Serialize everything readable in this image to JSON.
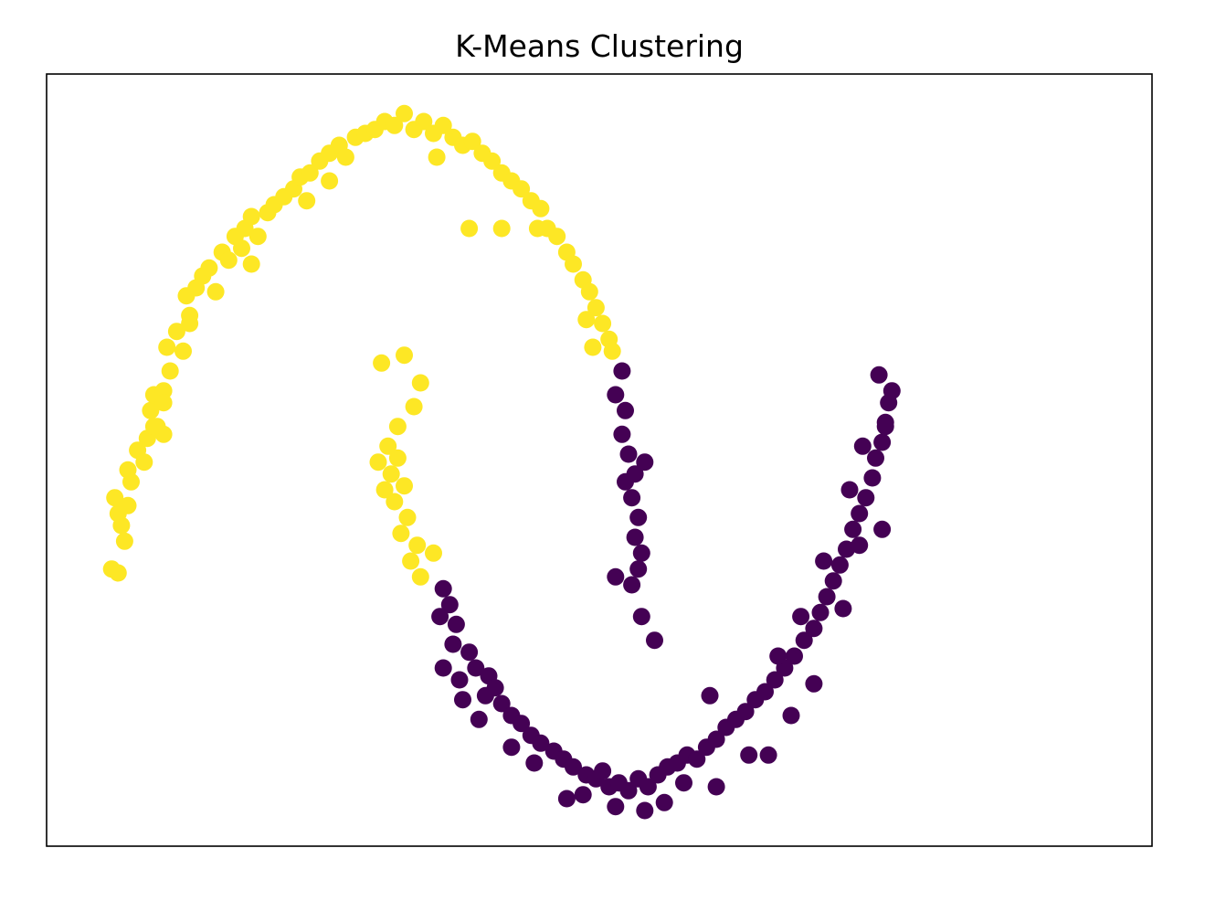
{
  "chart_data": {
    "type": "scatter",
    "title": "K-Means Clustering",
    "xlabel": "",
    "ylabel": "",
    "xlim": [
      -1.2,
      2.2
    ],
    "ylim": [
      -0.7,
      1.25
    ],
    "grid": false,
    "ticks_visible": false,
    "legend": "none",
    "series": [
      {
        "color": "#fde725",
        "points": [
          [
            -1.0,
            0.0
          ],
          [
            -0.98,
            -0.01
          ],
          [
            -0.96,
            0.07
          ],
          [
            -0.97,
            0.11
          ],
          [
            -0.98,
            0.14
          ],
          [
            -0.99,
            0.18
          ],
          [
            -0.95,
            0.16
          ],
          [
            -0.94,
            0.22
          ],
          [
            -0.92,
            0.3
          ],
          [
            -0.9,
            0.27
          ],
          [
            -0.89,
            0.33
          ],
          [
            -0.86,
            0.36
          ],
          [
            -0.84,
            0.34
          ],
          [
            -0.88,
            0.4
          ],
          [
            -0.87,
            0.44
          ],
          [
            -0.84,
            0.45
          ],
          [
            -0.82,
            0.5
          ],
          [
            -0.83,
            0.56
          ],
          [
            -0.8,
            0.6
          ],
          [
            -0.78,
            0.55
          ],
          [
            -0.76,
            0.64
          ],
          [
            -0.77,
            0.69
          ],
          [
            -0.74,
            0.71
          ],
          [
            -0.72,
            0.74
          ],
          [
            -0.7,
            0.76
          ],
          [
            -0.68,
            0.7
          ],
          [
            -0.66,
            0.8
          ],
          [
            -0.64,
            0.78
          ],
          [
            -0.62,
            0.84
          ],
          [
            -0.59,
            0.86
          ],
          [
            -0.57,
            0.89
          ],
          [
            -0.55,
            0.84
          ],
          [
            -0.52,
            0.9
          ],
          [
            -0.5,
            0.92
          ],
          [
            -0.47,
            0.94
          ],
          [
            -0.44,
            0.96
          ],
          [
            -0.42,
            0.99
          ],
          [
            -0.39,
            1.0
          ],
          [
            -0.36,
            1.03
          ],
          [
            -0.33,
            1.05
          ],
          [
            -0.3,
            1.07
          ],
          [
            -0.28,
            1.04
          ],
          [
            -0.25,
            1.09
          ],
          [
            -0.22,
            1.1
          ],
          [
            -0.19,
            1.11
          ],
          [
            -0.16,
            1.13
          ],
          [
            -0.13,
            1.12
          ],
          [
            -0.1,
            1.15
          ],
          [
            -0.07,
            1.11
          ],
          [
            -0.04,
            1.13
          ],
          [
            -0.01,
            1.1
          ],
          [
            0.02,
            1.12
          ],
          [
            0.05,
            1.09
          ],
          [
            0.08,
            1.07
          ],
          [
            0.11,
            1.08
          ],
          [
            0.14,
            1.05
          ],
          [
            0.17,
            1.03
          ],
          [
            0.2,
            1.0
          ],
          [
            0.23,
            0.98
          ],
          [
            0.26,
            0.96
          ],
          [
            0.29,
            0.93
          ],
          [
            0.32,
            0.91
          ],
          [
            0.34,
            0.86
          ],
          [
            0.37,
            0.84
          ],
          [
            0.4,
            0.8
          ],
          [
            0.42,
            0.77
          ],
          [
            0.45,
            0.73
          ],
          [
            0.47,
            0.7
          ],
          [
            0.49,
            0.66
          ],
          [
            0.51,
            0.62
          ],
          [
            0.53,
            0.58
          ],
          [
            0.54,
            0.55
          ],
          [
            0.1,
            0.86
          ],
          [
            0.2,
            0.86
          ],
          [
            -0.57,
            0.77
          ],
          [
            -0.84,
            0.42
          ],
          [
            -0.87,
            0.36
          ],
          [
            -0.95,
            0.25
          ],
          [
            -0.76,
            0.62
          ],
          [
            -0.6,
            0.81
          ],
          [
            -0.4,
            0.93
          ],
          [
            -0.33,
            0.98
          ],
          [
            0.0,
            1.04
          ],
          [
            0.31,
            0.86
          ],
          [
            0.46,
            0.63
          ],
          [
            0.48,
            0.56
          ],
          [
            -0.17,
            0.52
          ],
          [
            -0.1,
            0.54
          ],
          [
            -0.05,
            0.47
          ],
          [
            -0.07,
            0.41
          ],
          [
            -0.12,
            0.36
          ],
          [
            -0.15,
            0.31
          ],
          [
            -0.18,
            0.27
          ],
          [
            -0.14,
            0.24
          ],
          [
            -0.1,
            0.21
          ],
          [
            -0.13,
            0.17
          ],
          [
            -0.09,
            0.13
          ],
          [
            -0.11,
            0.09
          ],
          [
            -0.06,
            0.06
          ],
          [
            -0.08,
            0.02
          ],
          [
            -0.05,
            -0.02
          ],
          [
            -0.01,
            0.04
          ],
          [
            -0.16,
            0.2
          ],
          [
            -0.12,
            0.28
          ]
        ]
      },
      {
        "color": "#440154",
        "points": [
          [
            0.57,
            0.5
          ],
          [
            0.55,
            0.44
          ],
          [
            0.58,
            0.4
          ],
          [
            0.57,
            0.34
          ],
          [
            0.59,
            0.29
          ],
          [
            0.61,
            0.24
          ],
          [
            0.6,
            0.18
          ],
          [
            0.62,
            0.13
          ],
          [
            0.61,
            0.08
          ],
          [
            0.63,
            0.04
          ],
          [
            0.62,
            0.0
          ],
          [
            0.6,
            -0.04
          ],
          [
            0.64,
            0.27
          ],
          [
            0.58,
            0.22
          ],
          [
            0.55,
            -0.02
          ],
          [
            0.63,
            -0.12
          ],
          [
            0.02,
            -0.05
          ],
          [
            0.04,
            -0.09
          ],
          [
            0.01,
            -0.12
          ],
          [
            0.06,
            -0.14
          ],
          [
            0.05,
            -0.19
          ],
          [
            0.1,
            -0.21
          ],
          [
            0.12,
            -0.25
          ],
          [
            0.16,
            -0.27
          ],
          [
            0.15,
            -0.32
          ],
          [
            0.2,
            -0.34
          ],
          [
            0.23,
            -0.37
          ],
          [
            0.26,
            -0.39
          ],
          [
            0.29,
            -0.42
          ],
          [
            0.32,
            -0.44
          ],
          [
            0.36,
            -0.46
          ],
          [
            0.39,
            -0.48
          ],
          [
            0.42,
            -0.5
          ],
          [
            0.46,
            -0.52
          ],
          [
            0.49,
            -0.53
          ],
          [
            0.53,
            -0.55
          ],
          [
            0.56,
            -0.54
          ],
          [
            0.59,
            -0.56
          ],
          [
            0.62,
            -0.53
          ],
          [
            0.65,
            -0.55
          ],
          [
            0.68,
            -0.52
          ],
          [
            0.71,
            -0.5
          ],
          [
            0.74,
            -0.49
          ],
          [
            0.77,
            -0.47
          ],
          [
            0.8,
            -0.48
          ],
          [
            0.83,
            -0.45
          ],
          [
            0.86,
            -0.43
          ],
          [
            0.89,
            -0.4
          ],
          [
            0.92,
            -0.38
          ],
          [
            0.95,
            -0.36
          ],
          [
            0.98,
            -0.33
          ],
          [
            1.01,
            -0.31
          ],
          [
            1.04,
            -0.28
          ],
          [
            1.07,
            -0.25
          ],
          [
            1.1,
            -0.22
          ],
          [
            1.13,
            -0.18
          ],
          [
            1.16,
            -0.15
          ],
          [
            1.18,
            -0.11
          ],
          [
            1.2,
            -0.07
          ],
          [
            1.22,
            -0.03
          ],
          [
            1.24,
            0.01
          ],
          [
            1.26,
            0.05
          ],
          [
            1.28,
            0.1
          ],
          [
            1.3,
            0.14
          ],
          [
            1.32,
            0.18
          ],
          [
            1.34,
            0.23
          ],
          [
            1.35,
            0.28
          ],
          [
            1.37,
            0.32
          ],
          [
            1.38,
            0.37
          ],
          [
            1.39,
            0.42
          ],
          [
            1.4,
            0.45
          ],
          [
            1.36,
            0.49
          ],
          [
            1.3,
            0.06
          ],
          [
            1.25,
            -0.1
          ],
          [
            1.12,
            -0.12
          ],
          [
            1.05,
            -0.22
          ],
          [
            0.84,
            -0.32
          ],
          [
            0.96,
            -0.47
          ],
          [
            0.55,
            -0.6
          ],
          [
            0.64,
            -0.61
          ],
          [
            0.45,
            -0.57
          ],
          [
            0.02,
            -0.25
          ],
          [
            0.08,
            -0.33
          ],
          [
            0.23,
            -0.45
          ],
          [
            0.67,
            -0.18
          ],
          [
            1.37,
            0.1
          ],
          [
            1.38,
            0.36
          ],
          [
            1.31,
            0.31
          ],
          [
            1.19,
            0.02
          ],
          [
            1.16,
            -0.29
          ],
          [
            1.02,
            -0.47
          ],
          [
            0.86,
            -0.55
          ],
          [
            0.7,
            -0.59
          ],
          [
            0.4,
            -0.58
          ],
          [
            0.13,
            -0.38
          ],
          [
            0.07,
            -0.28
          ],
          [
            0.18,
            -0.3
          ],
          [
            0.3,
            -0.49
          ],
          [
            0.51,
            -0.51
          ],
          [
            0.76,
            -0.54
          ],
          [
            1.09,
            -0.37
          ],
          [
            1.27,
            0.2
          ]
        ]
      }
    ]
  }
}
